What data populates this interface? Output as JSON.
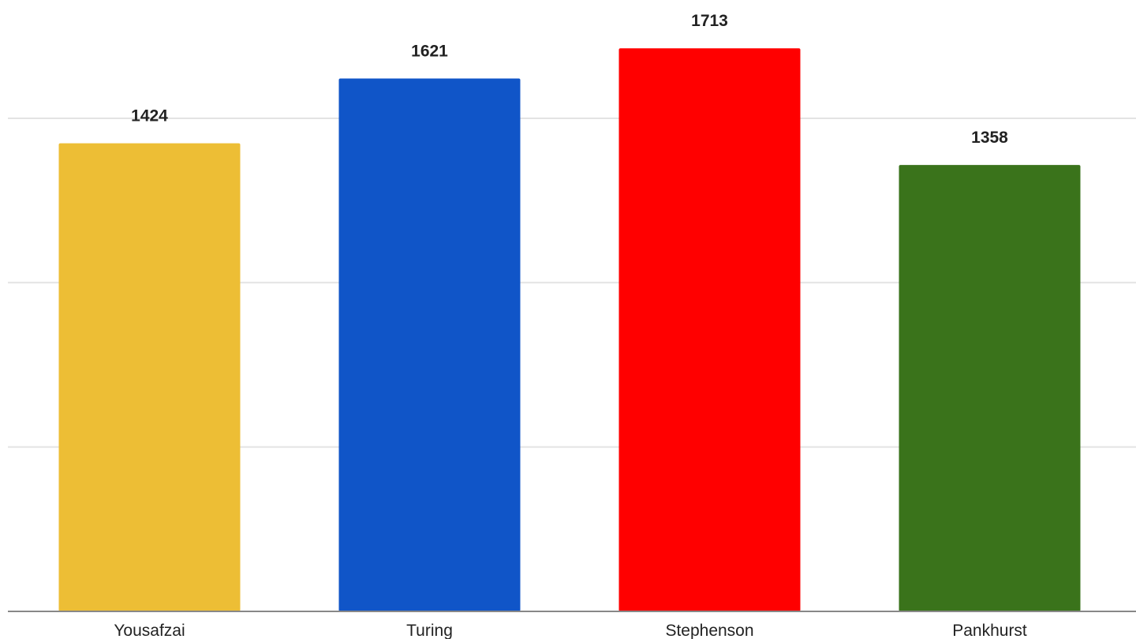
{
  "chart_data": {
    "type": "bar",
    "title": "",
    "xlabel": "",
    "ylabel": "",
    "categories": [
      "Yousafzai",
      "Turing",
      "Stephenson",
      "Pankhurst"
    ],
    "values": [
      1424,
      1621,
      1713,
      1358
    ],
    "colors": [
      "#EDBE35",
      "#1055C8",
      "#FF0000",
      "#3A731B"
    ],
    "ylim": [
      0,
      1800
    ],
    "gridlines": [
      500,
      1000,
      1500
    ],
    "grid": true,
    "legend": "none",
    "data_labels": true
  }
}
